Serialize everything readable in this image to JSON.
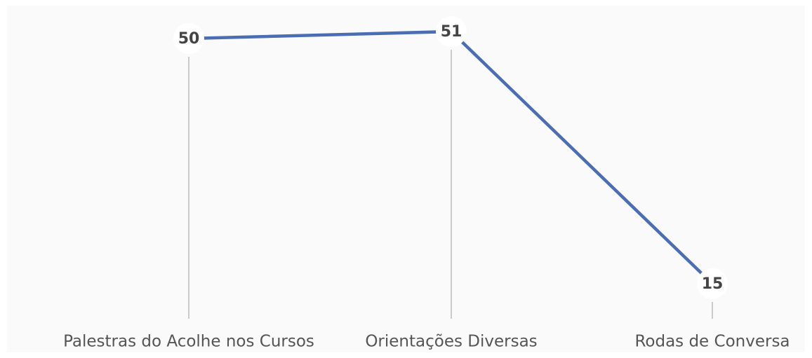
{
  "chart_data": {
    "type": "line",
    "categories": [
      "Palestras do Acolhe nos Cursos",
      "Orientações Diversas",
      "Rodas de Conversa"
    ],
    "values": [
      50,
      51,
      15
    ],
    "color": "#4a6db3"
  }
}
